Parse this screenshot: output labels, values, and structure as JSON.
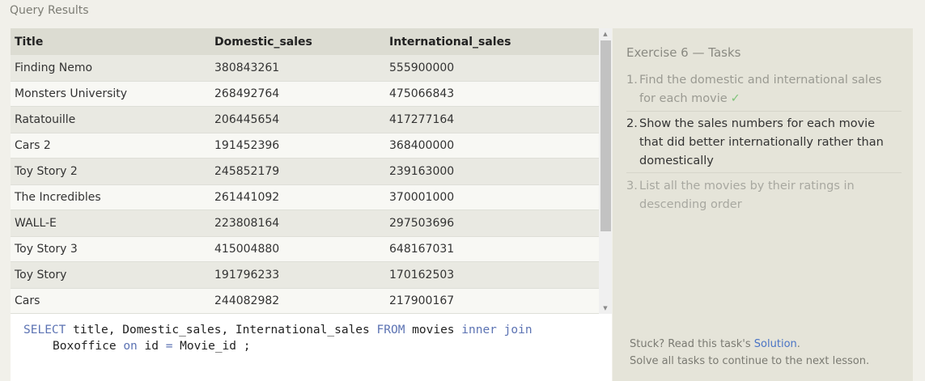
{
  "page_title": "Query Results",
  "table": {
    "headers": [
      "Title",
      "Domestic_sales",
      "International_sales"
    ],
    "rows": [
      [
        "Finding Nemo",
        "380843261",
        "555900000"
      ],
      [
        "Monsters University",
        "268492764",
        "475066843"
      ],
      [
        "Ratatouille",
        "206445654",
        "417277164"
      ],
      [
        "Cars 2",
        "191452396",
        "368400000"
      ],
      [
        "Toy Story 2",
        "245852179",
        "239163000"
      ],
      [
        "The Incredibles",
        "261441092",
        "370001000"
      ],
      [
        "WALL-E",
        "223808164",
        "297503696"
      ],
      [
        "Toy Story 3",
        "415004880",
        "648167031"
      ],
      [
        "Toy Story",
        "191796233",
        "170162503"
      ],
      [
        "Cars",
        "244082982",
        "217900167"
      ]
    ]
  },
  "editor": {
    "line1": {
      "kw1": "SELECT",
      "t1": " title, Domestic_sales, International_sales ",
      "kw2": "FROM",
      "t2": " movies ",
      "kw3": "inner join"
    },
    "line2": {
      "t1": "Boxoffice ",
      "kw1": "on",
      "t2": " id ",
      "op": "=",
      "t3": " Movie_id ;"
    }
  },
  "tasks": {
    "title": "Exercise 6 — Tasks",
    "items": [
      {
        "num": "1.",
        "text": "Find the domestic and international sales for each movie",
        "status": "done",
        "check": "✓"
      },
      {
        "num": "2.",
        "text": "Show the sales numbers for each movie that did better internationally rather than domestically",
        "status": "active"
      },
      {
        "num": "3.",
        "text": "List all the movies by their ratings in descending order",
        "status": "pending"
      }
    ],
    "footer": {
      "stuck_prefix": "Stuck? Read this task's ",
      "solution_link": "Solution",
      "stuck_suffix": ".",
      "note": "Solve all tasks to continue to the next lesson."
    }
  },
  "colors": {
    "accent_link": "#4a74c5",
    "sql_keyword": "#5c73b3",
    "check_green": "#7fc47a"
  }
}
